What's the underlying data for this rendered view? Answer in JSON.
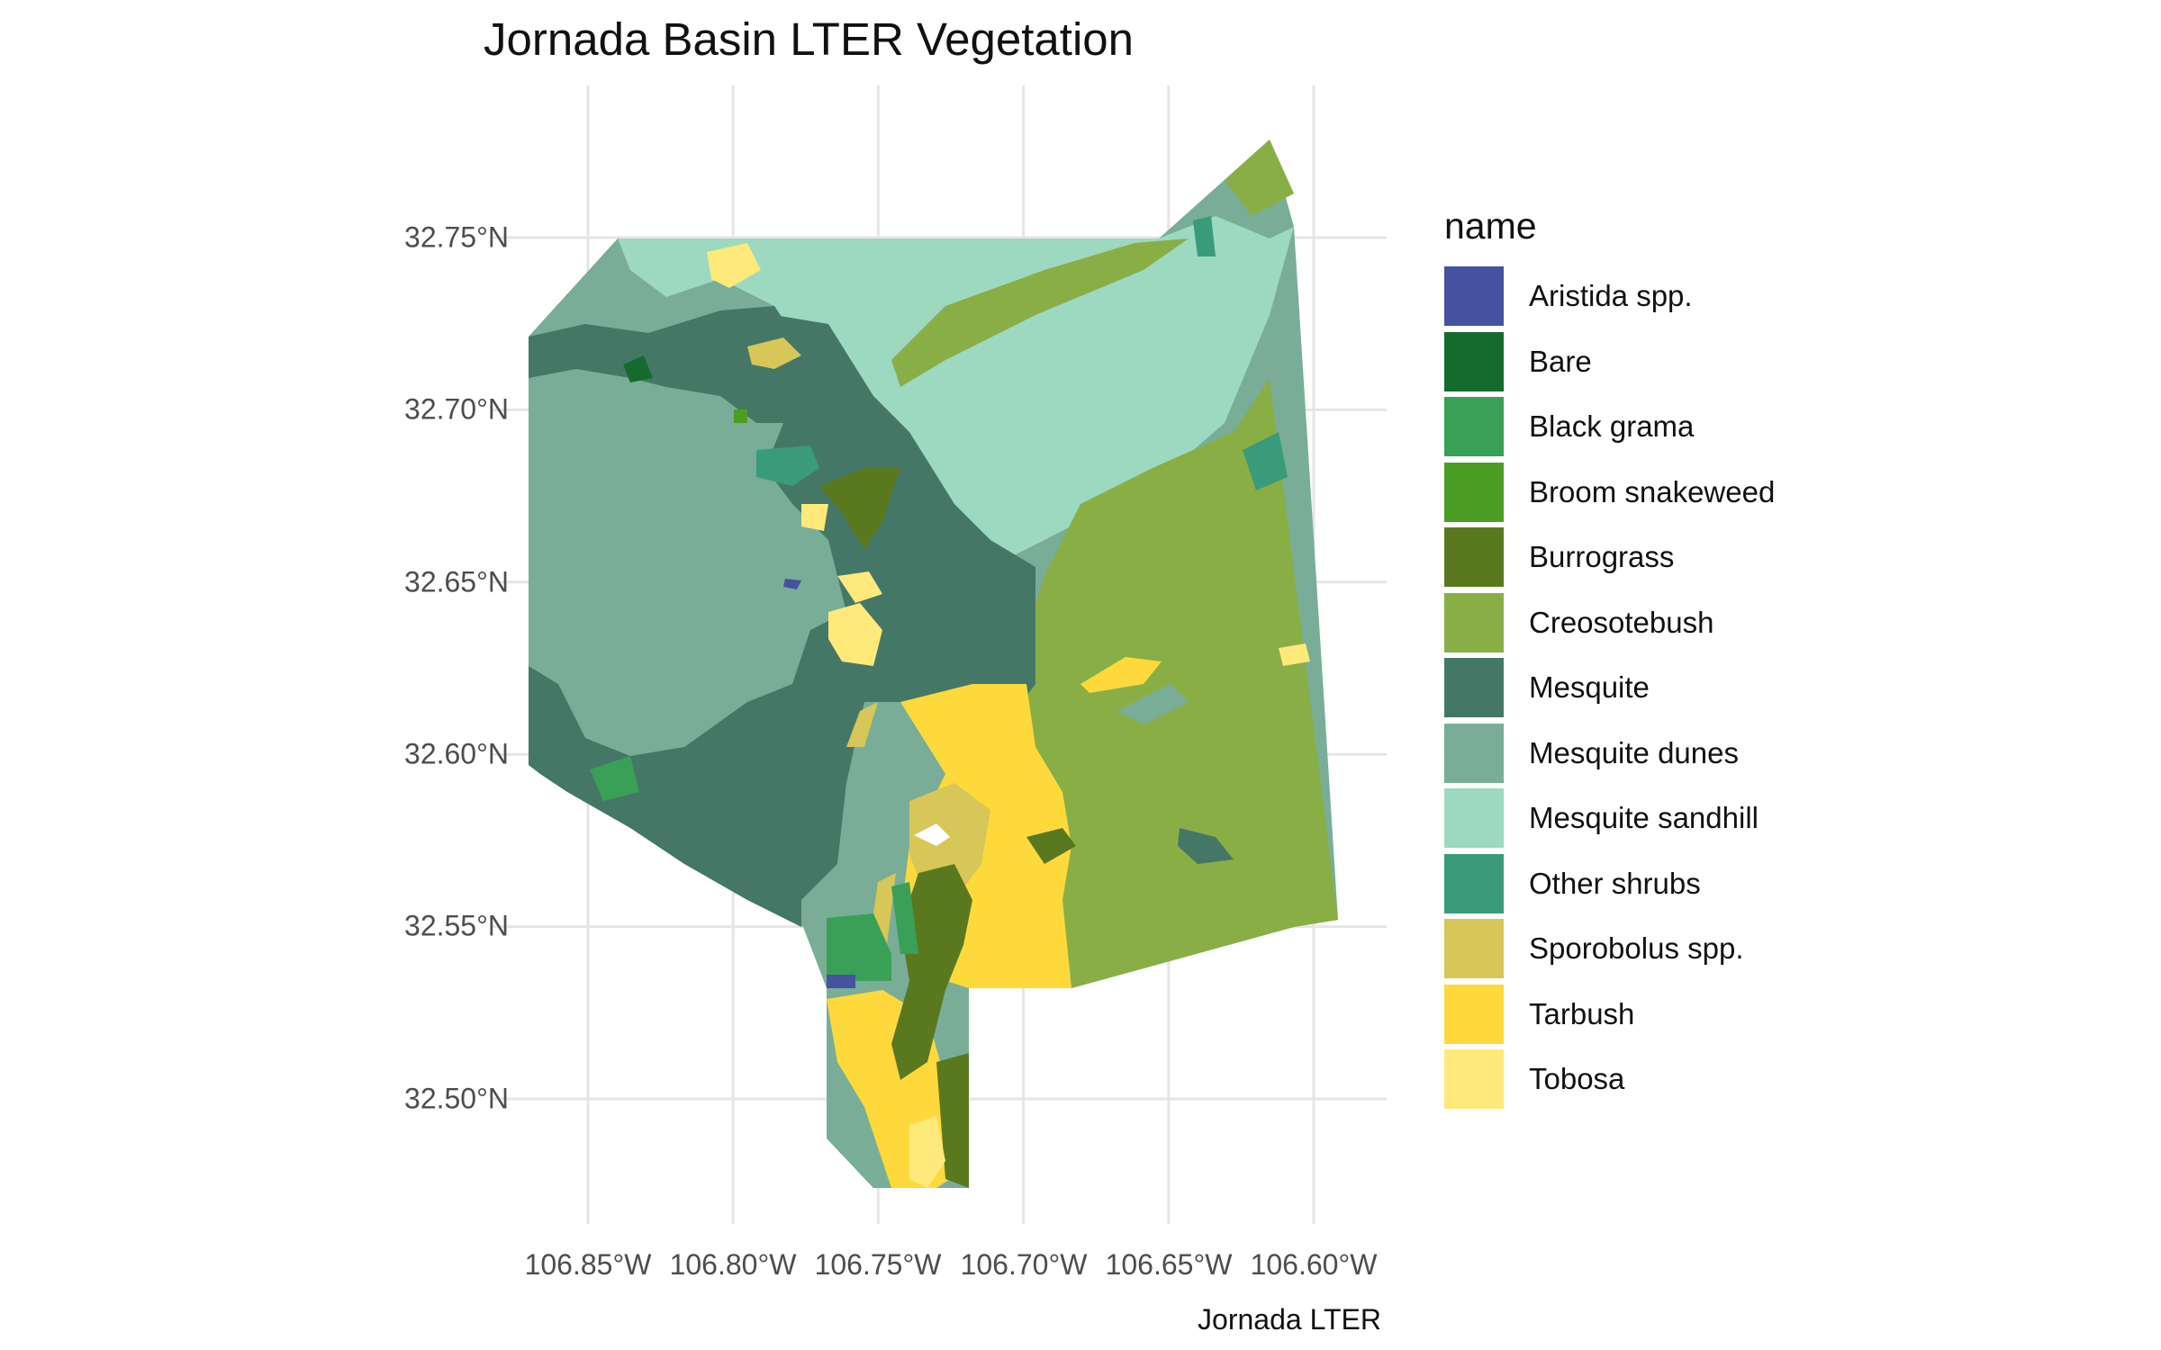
{
  "title": "Jornada Basin LTER Vegetation",
  "caption": "Jornada LTER",
  "axes": {
    "y_ticks": [
      {
        "label": "32.75°N",
        "value": 32.75
      },
      {
        "label": "32.70°N",
        "value": 32.7
      },
      {
        "label": "32.65°N",
        "value": 32.65
      },
      {
        "label": "32.60°N",
        "value": 32.6
      },
      {
        "label": "32.55°N",
        "value": 32.55
      },
      {
        "label": "32.50°N",
        "value": 32.5
      }
    ],
    "x_ticks": [
      {
        "label": "106.85°W",
        "value": -106.85
      },
      {
        "label": "106.80°W",
        "value": -106.8
      },
      {
        "label": "106.75°W",
        "value": -106.75
      },
      {
        "label": "106.70°W",
        "value": -106.7
      },
      {
        "label": "106.65°W",
        "value": -106.65
      },
      {
        "label": "106.60°W",
        "value": -106.6
      }
    ],
    "grid": true
  },
  "legend": {
    "title": "name",
    "placement": "right",
    "items": [
      {
        "label": "Aristida spp.",
        "color": "#45529F"
      },
      {
        "label": "Bare",
        "color": "#146B2D"
      },
      {
        "label": "Black grama",
        "color": "#3A9F57"
      },
      {
        "label": "Broom snakeweed",
        "color": "#4A9E24"
      },
      {
        "label": "Burrograss",
        "color": "#5A791F"
      },
      {
        "label": "Creosotebush",
        "color": "#8AAE46"
      },
      {
        "label": "Mesquite",
        "color": "#457767"
      },
      {
        "label": "Mesquite dunes",
        "color": "#79AD97"
      },
      {
        "label": "Mesquite sandhill",
        "color": "#9DD8C1"
      },
      {
        "label": "Other shrubs",
        "color": "#3A9B7A"
      },
      {
        "label": "Sporobolus spp.",
        "color": "#D7C658"
      },
      {
        "label": "Tarbush",
        "color": "#FDD93B"
      },
      {
        "label": "Tobosa",
        "color": "#FFE97A"
      }
    ]
  }
}
